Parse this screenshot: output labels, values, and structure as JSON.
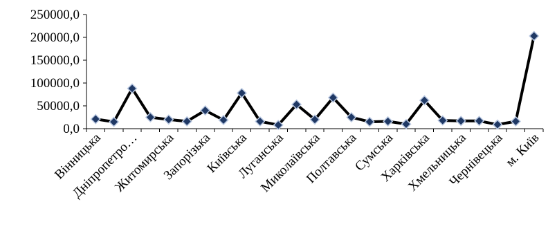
{
  "chart_data": {
    "type": "line",
    "title": "",
    "xlabel": "",
    "ylabel": "",
    "ylim": [
      0,
      250000
    ],
    "yticks": [
      "250000,0",
      "200000,0",
      "150000,0",
      "100000,0",
      "50000,0",
      "0,0"
    ],
    "ytick_values": [
      250000,
      200000,
      150000,
      100000,
      50000,
      0
    ],
    "grid": false,
    "legend": "none",
    "line_color": "#000000",
    "marker_fill": "#1f3864",
    "marker_stroke": "#b8c7e0",
    "category_labels": [
      "Вінницька",
      "Дніпропетро…",
      "Житомирська",
      "Запорізька",
      "Київська",
      "Луганська",
      "Миколаївська",
      "Полтавська",
      "Сумська",
      "Харківська",
      "Хмельницька",
      "Чернівецька",
      "м. Київ"
    ],
    "series": [
      {
        "values": [
          21000,
          15000,
          88000,
          25000,
          20000,
          16000,
          40000,
          19000,
          78000,
          16000,
          8000,
          53000,
          20000,
          68000,
          25000,
          15000,
          16000,
          10000,
          62000,
          18000,
          17000,
          17000,
          9000,
          16000,
          203000
        ]
      }
    ]
  }
}
